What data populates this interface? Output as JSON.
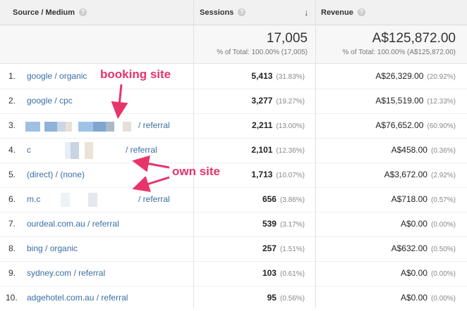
{
  "header": {
    "source_medium": "Source / Medium",
    "sessions": "Sessions",
    "revenue": "Revenue",
    "help": "?",
    "sort_arrow": "↓"
  },
  "totals": {
    "sessions_value": "17,005",
    "sessions_sub": "% of Total: 100.00% (17,005)",
    "revenue_value": "A$125,872.00",
    "revenue_sub": "% of Total: 100.00% (A$125,872.00)"
  },
  "rows": [
    {
      "idx": "1.",
      "source": "google / organic",
      "sessions": "5,413",
      "sessions_pct": "(31.83%)",
      "revenue": "A$26,329.00",
      "revenue_pct": "(20.92%)"
    },
    {
      "idx": "2.",
      "source": "google / cpc",
      "sessions": "3,277",
      "sessions_pct": "(19.27%)",
      "revenue": "A$15,519.00",
      "revenue_pct": "(12.33%)"
    },
    {
      "idx": "3.",
      "source": "/ referral",
      "sessions": "2,211",
      "sessions_pct": "(13.00%)",
      "revenue": "A$76,652.00",
      "revenue_pct": "(60.90%)"
    },
    {
      "idx": "4.",
      "source_prefix": "c",
      "source": "/ referral",
      "sessions": "2,101",
      "sessions_pct": "(12.36%)",
      "revenue": "A$458.00",
      "revenue_pct": "(0.36%)"
    },
    {
      "idx": "5.",
      "source": "(direct) / (none)",
      "sessions": "1,713",
      "sessions_pct": "(10.07%)",
      "revenue": "A$3,672.00",
      "revenue_pct": "(2.92%)"
    },
    {
      "idx": "6.",
      "source_prefix": "m.c",
      "source": "/ referral",
      "sessions": "656",
      "sessions_pct": "(3.86%)",
      "revenue": "A$718.00",
      "revenue_pct": "(0.57%)"
    },
    {
      "idx": "7.",
      "source": "ourdeal.com.au / referral",
      "sessions": "539",
      "sessions_pct": "(3.17%)",
      "revenue": "A$0.00",
      "revenue_pct": "(0.00%)"
    },
    {
      "idx": "8.",
      "source": "bing / organic",
      "sessions": "257",
      "sessions_pct": "(1.51%)",
      "revenue": "A$632.00",
      "revenue_pct": "(0.50%)"
    },
    {
      "idx": "9.",
      "source": "sydney.com / referral",
      "sessions": "103",
      "sessions_pct": "(0.61%)",
      "revenue": "A$0.00",
      "revenue_pct": "(0.00%)"
    },
    {
      "idx": "10.",
      "source": "adgehotel.com.au / referral",
      "sessions": "95",
      "sessions_pct": "(0.56%)",
      "revenue": "A$0.00",
      "revenue_pct": "(0.00%)"
    }
  ],
  "annotations": {
    "booking_site": "booking site",
    "own_site": "own site"
  },
  "colors": {
    "link": "#3a6ea5",
    "annotation": "#e8336b"
  }
}
